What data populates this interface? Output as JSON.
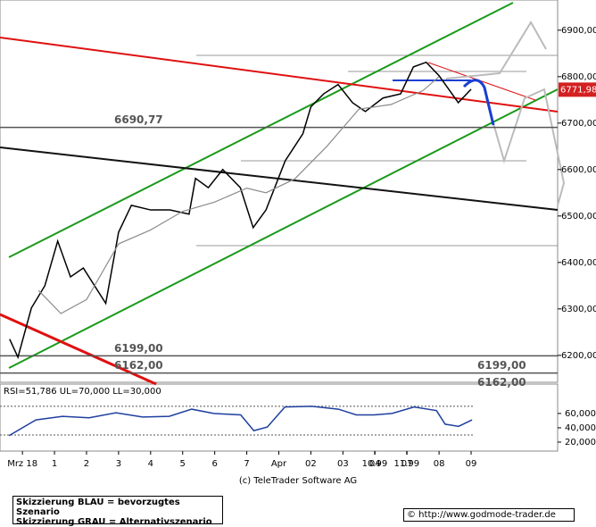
{
  "chart_data": {
    "type": "line",
    "xlim": [
      -0.7,
      16.7
    ],
    "xticks": [
      {
        "value": 0,
        "label": "Mrz 18"
      },
      1,
      2,
      3,
      4,
      5,
      6,
      7,
      {
        "value": 8,
        "label": "Apr"
      },
      {
        "value": 9,
        "label": "02"
      },
      {
        "value": 10,
        "label": "03"
      },
      {
        "value": 11,
        "label": "04"
      },
      {
        "value": 12,
        "label": "07"
      },
      {
        "value": 13,
        "label": "08"
      },
      {
        "value": 14,
        "label": "09"
      },
      10.99,
      11.99
    ],
    "ylim": [
      6142,
      6965
    ],
    "yticks": [
      {
        "value": 6200,
        "label": "6200,00"
      },
      {
        "value": 6300,
        "label": "6300,00"
      },
      {
        "value": 6400,
        "label": "6400,00"
      },
      {
        "value": 6500,
        "label": "6500,00"
      },
      {
        "value": 6600,
        "label": "6600,00"
      },
      {
        "value": 6700,
        "label": "6700,00"
      },
      {
        "value": 6800,
        "label": "6800,00"
      },
      {
        "value": 6900,
        "label": "6900,00"
      }
    ],
    "series": [
      {
        "color": "#000000",
        "x": [
          -0.4,
          -0.14,
          0.28,
          0.7,
          1.1,
          1.5,
          1.9,
          2.6,
          3.0,
          3.4,
          4.0,
          4.6,
          5.2,
          5.4,
          5.8,
          6.25,
          6.8,
          7.2,
          7.6,
          8.2,
          8.75,
          9.0,
          9.4,
          9.85,
          10.3,
          10.7,
          11.25,
          11.8,
          12.2,
          12.6,
          13.0,
          13.3,
          13.6,
          14.0
        ],
        "values": [
          6235,
          6196,
          6302,
          6350,
          6446,
          6369,
          6388,
          6312,
          6465,
          6523,
          6513,
          6513,
          6504,
          6581,
          6561,
          6600,
          6561,
          6475,
          6513,
          6619,
          6677,
          6735,
          6763,
          6783,
          6744,
          6725,
          6754,
          6763,
          6821,
          6831,
          6802,
          6773,
          6744,
          6773
        ]
      },
      {
        "color": "#8c8c8c",
        "x": [
          0.5,
          1.2,
          2.0,
          3.0,
          4.0,
          5.0,
          6.0,
          7.0,
          7.6,
          8.5,
          9.5,
          10.5,
          11.5,
          12.5,
          13.0
        ],
        "values": [
          6340,
          6290,
          6320,
          6440,
          6470,
          6510,
          6530,
          6560,
          6550,
          6580,
          6650,
          6730,
          6740,
          6770,
          6800
        ]
      }
    ],
    "levels": [
      {
        "value": 6690.77,
        "label": "6690,77"
      },
      {
        "value": 6199,
        "label": "6199,00"
      },
      {
        "value": 6162,
        "label": "6162,00"
      }
    ],
    "last_price": {
      "value": 6771.98,
      "label": "6771,98"
    },
    "rsi": {
      "label": "RSI=51,786 UL=70,000 LL=30,000",
      "ylim": [
        10,
        101
      ],
      "yticks": [
        {
          "value": 20,
          "label": "20,000"
        },
        {
          "value": 40,
          "label": "40,000"
        },
        {
          "value": 60,
          "label": "60,000"
        }
      ],
      "bands": [
        70,
        30
      ],
      "color": "#1f3f9f",
      "x": [
        -0.42,
        0.42,
        1.25,
        2.08,
        2.92,
        3.75,
        4.58,
        5.28,
        5.97,
        6.81,
        7.22,
        7.64,
        8.19,
        9.03,
        9.86,
        10.42,
        10.97,
        11.53,
        12.22,
        12.92,
        13.19,
        13.61,
        14.03
      ],
      "values": [
        29,
        51,
        56,
        54,
        61,
        55,
        56,
        66,
        60,
        58,
        36,
        41,
        69,
        70,
        66,
        58,
        58,
        60,
        69,
        64,
        45,
        42,
        51
      ]
    },
    "copyright": "(c) TeleTrader Software AG",
    "notes": [
      "Skizzierung BLAU = bevorzugtes Szenario",
      "Skizzierung GRAU = Alternativszenario"
    ],
    "source": "© http://www.godmode-trader.de"
  }
}
